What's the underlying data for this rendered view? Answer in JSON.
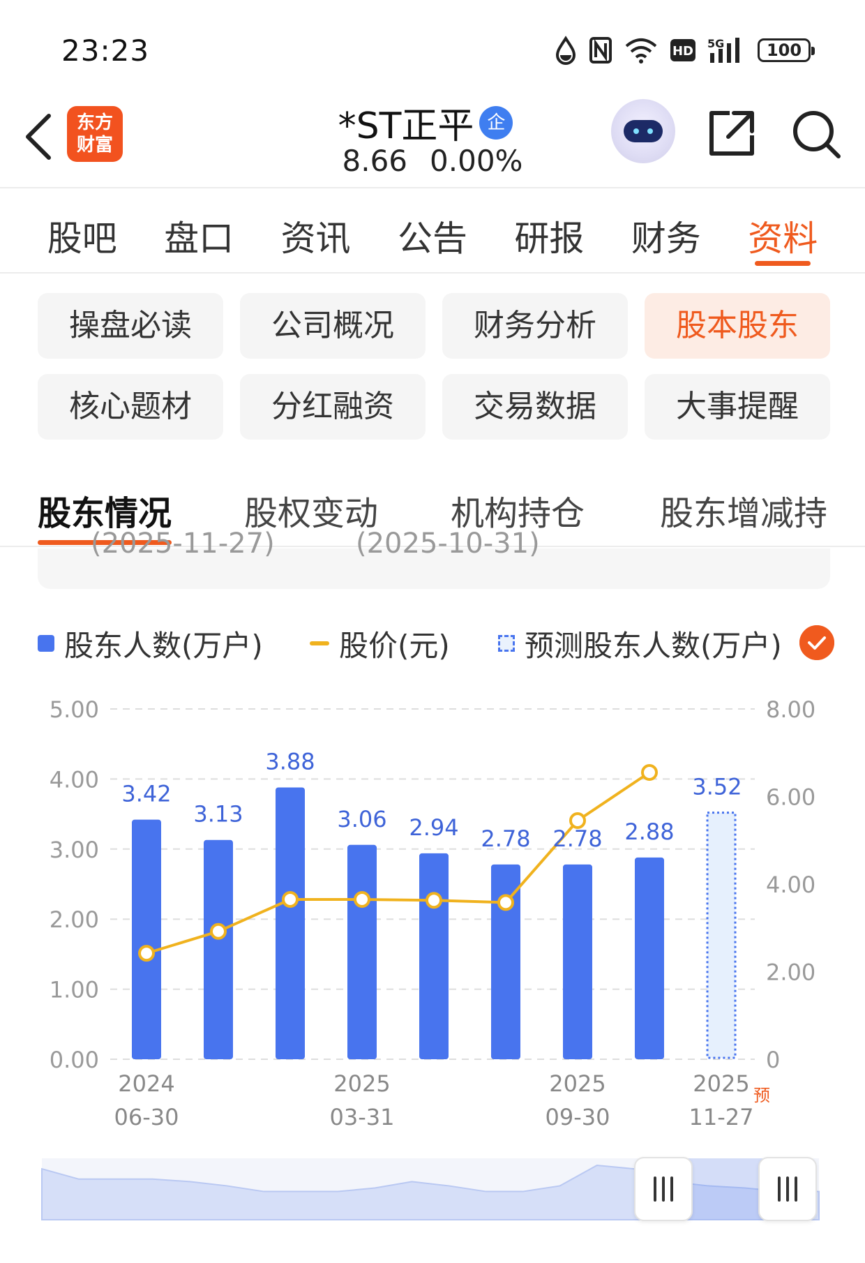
{
  "status_bar": {
    "time": "23:23",
    "network": "5G",
    "hd": "HD",
    "battery": "100",
    "icons": [
      "water-drop-icon",
      "nfc-icon",
      "wifi-icon",
      "hd-icon",
      "signal-5g-icon",
      "battery-icon"
    ]
  },
  "header": {
    "logo_line1": "东方",
    "logo_line2": "财富",
    "stock_name": "*ST正平",
    "badge": "企",
    "price": "8.66",
    "change": "0.00%"
  },
  "top_tabs": [
    "股吧",
    "盘口",
    "资讯",
    "公告",
    "研报",
    "财务",
    "资料"
  ],
  "top_tab_active": "资料",
  "grid_buttons": [
    "操盘必读",
    "公司概况",
    "财务分析",
    "股本股东",
    "核心题材",
    "分红融资",
    "交易数据",
    "大事提醒"
  ],
  "grid_active": "股本股东",
  "sub_tabs": [
    "股东情况",
    "股权变动",
    "机构持仓",
    "股东增减持"
  ],
  "sub_tab_active": "股东情况",
  "panel_clipped": {
    "left": "(2025-11-27)",
    "right": "(2025-10-31)"
  },
  "legend": {
    "bar_label": "股东人数(万户)",
    "line_label": "股价(元)",
    "forecast_label": "预测股东人数(万户)"
  },
  "colors": {
    "accent": "#ef5a1e",
    "bar": "#4874ee",
    "line": "#f0b21e",
    "forecast_fill": "#e6f0fd"
  },
  "chart_data": {
    "type": "bar",
    "categories": [
      "2024-06-30",
      "",
      "",
      "2025-03-31",
      "",
      "",
      "2025-09-30",
      "",
      "2025-11-27"
    ],
    "x_tick_labels": [
      {
        "index": 0,
        "year": "2024",
        "date": "06-30"
      },
      {
        "index": 3,
        "year": "2025",
        "date": "03-31"
      },
      {
        "index": 6,
        "year": "2025",
        "date": "09-30"
      },
      {
        "index": 8,
        "year": "2025",
        "date": "11-27",
        "tag": "预"
      }
    ],
    "series": [
      {
        "name": "股东人数(万户)",
        "type": "bar",
        "axis": "left",
        "values": [
          3.42,
          3.13,
          3.88,
          3.06,
          2.94,
          2.78,
          2.78,
          2.88,
          null
        ],
        "labels": [
          "3.42",
          "3.13",
          "3.88",
          "3.06",
          "2.94",
          "2.78",
          "2.78",
          "2.88",
          null
        ]
      },
      {
        "name": "预测股东人数(万户)",
        "type": "bar-forecast",
        "axis": "left",
        "values": [
          null,
          null,
          null,
          null,
          null,
          null,
          null,
          null,
          3.52
        ],
        "labels": [
          null,
          null,
          null,
          null,
          null,
          null,
          null,
          null,
          "3.52"
        ]
      },
      {
        "name": "股价(元)",
        "type": "line",
        "axis": "right",
        "values": [
          2.42,
          2.92,
          3.65,
          3.65,
          3.63,
          3.58,
          5.45,
          6.55,
          null
        ]
      }
    ],
    "left_axis": {
      "ylim": [
        0,
        5
      ],
      "ticks": [
        "5.00",
        "4.00",
        "3.00",
        "2.00",
        "1.00",
        "0.00"
      ],
      "values": [
        5,
        4,
        3,
        2,
        1,
        0
      ]
    },
    "right_axis": {
      "ylim": [
        0,
        8
      ],
      "ticks": [
        "8.00",
        "6.00",
        "4.00",
        "2.00",
        "0"
      ],
      "values": [
        8,
        6,
        4,
        2,
        0
      ]
    },
    "grid": true,
    "legend_position": "top"
  },
  "overview": {
    "values": [
      3.42,
      3.13,
      3.13,
      3.13,
      3.06,
      2.94,
      2.78,
      2.78,
      2.78,
      2.88,
      3.06,
      2.94,
      2.78,
      2.78,
      2.94,
      3.52,
      3.42,
      3.06,
      2.94,
      2.88,
      2.78,
      2.78
    ]
  },
  "slider": {
    "start": 0.8,
    "end": 0.96
  }
}
